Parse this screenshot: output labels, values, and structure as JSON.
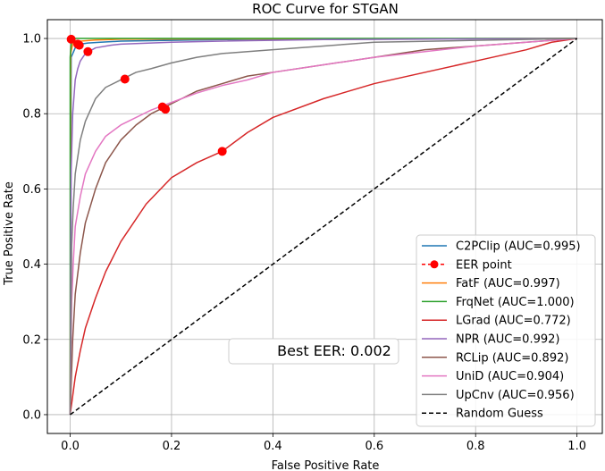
{
  "chart_data": {
    "type": "line",
    "title": "ROC Curve for STGAN",
    "xlabel": "False Positive Rate",
    "ylabel": "True Positive Rate",
    "xlim": [
      -0.045,
      1.05
    ],
    "ylim": [
      -0.05,
      1.05
    ],
    "xticks": [
      0.0,
      0.2,
      0.4,
      0.6,
      0.8,
      1.0
    ],
    "yticks": [
      0.0,
      0.2,
      0.4,
      0.6,
      0.8,
      1.0
    ],
    "xtick_labels": [
      "0.0",
      "0.2",
      "0.4",
      "0.6",
      "0.8",
      "1.0"
    ],
    "ytick_labels": [
      "0.0",
      "0.2",
      "0.4",
      "0.6",
      "0.8",
      "1.0"
    ],
    "grid": true,
    "legend_position": "lower-right",
    "annotation": "Best EER: 0.002",
    "series": [
      {
        "name": "C2PClip",
        "label": "C2PClip (AUC=0.995)",
        "color": "#1f77b4",
        "x": [
          0,
          0.002,
          0.01,
          0.02,
          0.035,
          0.06,
          0.1,
          0.2,
          0.3,
          0.4,
          0.6,
          1.0
        ],
        "y": [
          0,
          0.95,
          0.975,
          0.985,
          0.988,
          0.99,
          0.993,
          0.995,
          0.997,
          0.998,
          0.999,
          1.0
        ],
        "eer": [
          0.018,
          0.982
        ]
      },
      {
        "name": "FatF",
        "label": "FatF (AUC=0.997)",
        "color": "#ff7f0e",
        "x": [
          0,
          0.001,
          0.005,
          0.01,
          0.02,
          0.05,
          0.1,
          0.3,
          1.0
        ],
        "y": [
          0,
          0.96,
          0.985,
          0.99,
          0.993,
          0.996,
          0.998,
          0.999,
          1.0
        ],
        "eer": [
          0.015,
          0.985
        ]
      },
      {
        "name": "FrqNet",
        "label": "FrqNet (AUC=1.000)",
        "color": "#2ca02c",
        "x": [
          0,
          0.0,
          0.002,
          0.004,
          0.01,
          0.05,
          1.0
        ],
        "y": [
          0,
          0.95,
          0.985,
          0.998,
          1.0,
          1.0,
          1.0
        ],
        "eer": [
          0.002,
          0.998
        ]
      },
      {
        "name": "LGrad",
        "label": "LGrad (AUC=0.772)",
        "color": "#d62728",
        "x": [
          0,
          0.005,
          0.01,
          0.02,
          0.03,
          0.05,
          0.07,
          0.1,
          0.15,
          0.2,
          0.25,
          0.3,
          0.35,
          0.4,
          0.5,
          0.6,
          0.7,
          0.8,
          0.9,
          0.95,
          1.0
        ],
        "y": [
          0,
          0.05,
          0.1,
          0.17,
          0.23,
          0.31,
          0.38,
          0.46,
          0.56,
          0.63,
          0.67,
          0.7,
          0.75,
          0.79,
          0.84,
          0.88,
          0.91,
          0.94,
          0.97,
          0.99,
          1.0
        ],
        "eer": [
          0.3,
          0.7
        ]
      },
      {
        "name": "NPR",
        "label": "NPR (AUC=0.992)",
        "color": "#9467bd",
        "x": [
          0,
          0.002,
          0.005,
          0.01,
          0.015,
          0.02,
          0.03,
          0.05,
          0.08,
          0.1,
          0.2,
          0.3,
          0.5,
          1.0
        ],
        "y": [
          0,
          0.65,
          0.8,
          0.89,
          0.92,
          0.94,
          0.96,
          0.975,
          0.982,
          0.985,
          0.99,
          0.993,
          0.997,
          1.0
        ],
        "eer": [
          0.035,
          0.965
        ]
      },
      {
        "name": "RCLip",
        "label": "RCLip (AUC=0.892)",
        "color": "#8c564b",
        "x": [
          0,
          0.005,
          0.01,
          0.02,
          0.03,
          0.05,
          0.07,
          0.1,
          0.13,
          0.16,
          0.19,
          0.22,
          0.25,
          0.3,
          0.35,
          0.4,
          0.5,
          0.6,
          0.7,
          0.8,
          0.9,
          1.0
        ],
        "y": [
          0,
          0.2,
          0.32,
          0.43,
          0.51,
          0.6,
          0.67,
          0.73,
          0.77,
          0.8,
          0.82,
          0.84,
          0.86,
          0.88,
          0.9,
          0.91,
          0.93,
          0.95,
          0.97,
          0.98,
          0.99,
          1.0
        ],
        "eer": [
          0.188,
          0.812
        ]
      },
      {
        "name": "UniD",
        "label": "UniD (AUC=0.904)",
        "color": "#e377c2",
        "x": [
          0,
          0.003,
          0.006,
          0.01,
          0.02,
          0.03,
          0.05,
          0.07,
          0.1,
          0.13,
          0.16,
          0.19,
          0.22,
          0.25,
          0.3,
          0.35,
          0.4,
          0.5,
          0.6,
          0.7,
          0.8,
          0.9,
          1.0
        ],
        "y": [
          0,
          0.3,
          0.4,
          0.5,
          0.58,
          0.64,
          0.7,
          0.74,
          0.77,
          0.79,
          0.81,
          0.825,
          0.84,
          0.855,
          0.875,
          0.89,
          0.91,
          0.93,
          0.95,
          0.965,
          0.98,
          0.99,
          1.0
        ],
        "eer": [
          0.182,
          0.818
        ]
      },
      {
        "name": "UpCnv",
        "label": "UpCnv (AUC=0.956)",
        "color": "#7f7f7f",
        "x": [
          0,
          0.003,
          0.006,
          0.01,
          0.02,
          0.03,
          0.04,
          0.05,
          0.07,
          0.1,
          0.13,
          0.16,
          0.2,
          0.25,
          0.3,
          0.4,
          0.5,
          0.6,
          0.8,
          1.0
        ],
        "y": [
          0,
          0.45,
          0.55,
          0.64,
          0.73,
          0.78,
          0.81,
          0.84,
          0.87,
          0.89,
          0.91,
          0.92,
          0.935,
          0.95,
          0.96,
          0.97,
          0.98,
          0.99,
          0.995,
          1.0
        ],
        "eer": [
          0.108,
          0.892
        ]
      }
    ],
    "eer_legend_label": "EER point",
    "random_guess_label": "Random Guess",
    "legend_order": [
      "C2PClip",
      "EER point",
      "FatF",
      "FrqNet",
      "LGrad",
      "NPR",
      "RCLip",
      "UniD",
      "UpCnv",
      "Random Guess"
    ]
  }
}
